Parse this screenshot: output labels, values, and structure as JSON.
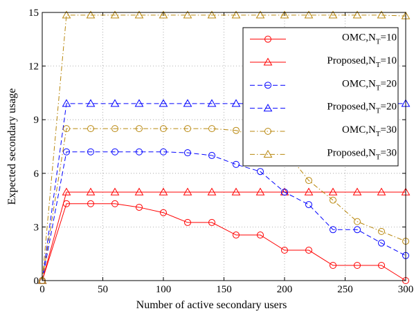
{
  "chart_data": {
    "type": "line",
    "title": "",
    "xlabel": "Number of active secondary users",
    "ylabel": "Expected secondary usage",
    "xlim": [
      0,
      300
    ],
    "ylim": [
      0,
      15
    ],
    "xticks": [
      "0",
      "50",
      "100",
      "150",
      "200",
      "250",
      "300"
    ],
    "yticks": [
      "0",
      "3",
      "6",
      "9",
      "12",
      "15"
    ],
    "grid": true,
    "legend_position": "top-right",
    "x": [
      0,
      20,
      40,
      60,
      80,
      100,
      120,
      140,
      160,
      180,
      200,
      220,
      240,
      260,
      280,
      300
    ],
    "series": [
      {
        "legend_main": "OMC,N",
        "legend_sub": "T",
        "legend_tail": "=10",
        "color": "#ff0000",
        "dash": "solid",
        "marker": "circle",
        "values": [
          0,
          4.3,
          4.3,
          4.3,
          4.1,
          3.8,
          3.25,
          3.25,
          2.55,
          2.55,
          1.7,
          1.7,
          0.85,
          0.85,
          0.85,
          0
        ]
      },
      {
        "legend_main": "Proposed,N",
        "legend_sub": "T",
        "legend_tail": "=10",
        "color": "#ff0000",
        "dash": "solid",
        "marker": "triangle",
        "values": [
          0,
          4.95,
          4.95,
          4.95,
          4.95,
          4.95,
          4.95,
          4.95,
          4.95,
          4.95,
          4.95,
          4.95,
          4.95,
          4.95,
          4.95,
          4.95
        ]
      },
      {
        "legend_main": "OMC,N",
        "legend_sub": "T",
        "legend_tail": "=20",
        "color": "#0000ff",
        "dash": "dashed",
        "marker": "circle",
        "values": [
          0,
          7.2,
          7.2,
          7.2,
          7.2,
          7.2,
          7.15,
          7.0,
          6.5,
          6.1,
          4.95,
          4.25,
          2.85,
          2.85,
          2.1,
          1.4
        ]
      },
      {
        "legend_main": "Proposed,N",
        "legend_sub": "T",
        "legend_tail": "=20",
        "color": "#0000ff",
        "dash": "dashed",
        "marker": "triangle",
        "values": [
          0,
          9.9,
          9.9,
          9.9,
          9.9,
          9.9,
          9.9,
          9.9,
          9.9,
          9.9,
          9.9,
          9.9,
          9.9,
          9.9,
          9.9,
          9.9
        ]
      },
      {
        "legend_main": "OMC,N",
        "legend_sub": "T",
        "legend_tail": "=30",
        "color": "#b8860b",
        "dash": "dashdot",
        "marker": "circle",
        "values": [
          0,
          8.5,
          8.5,
          8.5,
          8.5,
          8.5,
          8.5,
          8.5,
          8.4,
          8.0,
          7.3,
          5.6,
          4.5,
          3.3,
          2.75,
          2.2
        ]
      },
      {
        "legend_main": "Proposed,N",
        "legend_sub": "T",
        "legend_tail": "=30",
        "color": "#b8860b",
        "dash": "dashdot",
        "marker": "triangle",
        "values": [
          0,
          14.85,
          14.85,
          14.85,
          14.85,
          14.85,
          14.85,
          14.85,
          14.85,
          14.85,
          14.85,
          14.85,
          14.85,
          14.85,
          14.85,
          14.8
        ]
      }
    ]
  }
}
